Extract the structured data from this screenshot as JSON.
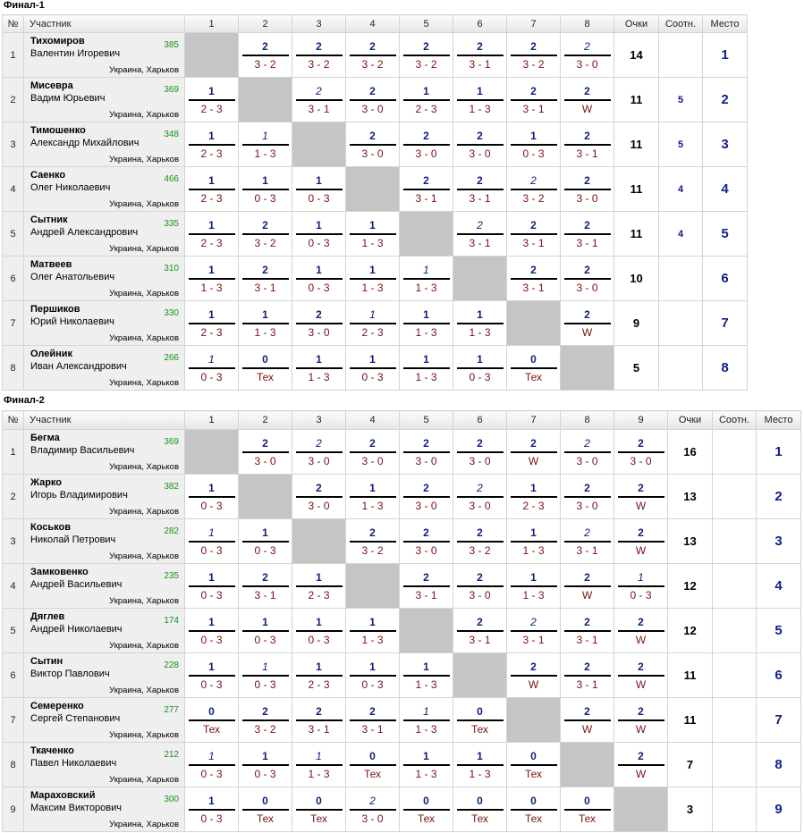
{
  "sections": [
    {
      "title": "Финал-1",
      "headers": {
        "no": "№",
        "participant": "Участник",
        "cols": [
          "1",
          "2",
          "3",
          "4",
          "5",
          "6",
          "7",
          "8"
        ],
        "points": "Очки",
        "ratio": "Соотн.",
        "place": "Место"
      },
      "rows": [
        {
          "no": "1",
          "name": "Тихомиров",
          "first": "Валентин Игоревич",
          "rating": "385",
          "city": "Украина, Харьков",
          "cells": [
            null,
            [
              "2",
              "3 - 2",
              0
            ],
            [
              "2",
              "3 - 2",
              0
            ],
            [
              "2",
              "3 - 2",
              0
            ],
            [
              "2",
              "3 - 2",
              0
            ],
            [
              "2",
              "3 - 1",
              0
            ],
            [
              "2",
              "3 - 2",
              0
            ],
            [
              "2",
              "3 - 0",
              1
            ]
          ],
          "points": "14",
          "ratio": "",
          "place": "1"
        },
        {
          "no": "2",
          "name": "Мисевра",
          "first": "Вадим Юрьевич",
          "rating": "369",
          "city": "Украина, Харьков",
          "cells": [
            [
              "1",
              "2 - 3",
              0
            ],
            null,
            [
              "2",
              "3 - 1",
              1
            ],
            [
              "2",
              "3 - 0",
              0
            ],
            [
              "1",
              "2 - 3",
              0
            ],
            [
              "1",
              "1 - 3",
              0
            ],
            [
              "2",
              "3 - 1",
              0
            ],
            [
              "2",
              "W",
              0
            ]
          ],
          "points": "11",
          "ratio": "5",
          "place": "2"
        },
        {
          "no": "3",
          "name": "Тимошенко",
          "first": "Александр Михайлович",
          "rating": "348",
          "city": "Украина, Харьков",
          "cells": [
            [
              "1",
              "2 - 3",
              0
            ],
            [
              "1",
              "1 - 3",
              1
            ],
            null,
            [
              "2",
              "3 - 0",
              0
            ],
            [
              "2",
              "3 - 0",
              0
            ],
            [
              "2",
              "3 - 0",
              0
            ],
            [
              "1",
              "0 - 3",
              0
            ],
            [
              "2",
              "3 - 1",
              0
            ]
          ],
          "points": "11",
          "ratio": "5",
          "place": "3"
        },
        {
          "no": "4",
          "name": "Саенко",
          "first": "Олег Николаевич",
          "rating": "466",
          "city": "Украина, Харьков",
          "cells": [
            [
              "1",
              "2 - 3",
              0
            ],
            [
              "1",
              "0 - 3",
              0
            ],
            [
              "1",
              "0 - 3",
              0
            ],
            null,
            [
              "2",
              "3 - 1",
              0
            ],
            [
              "2",
              "3 - 1",
              0
            ],
            [
              "2",
              "3 - 2",
              1
            ],
            [
              "2",
              "3 - 0",
              0
            ]
          ],
          "points": "11",
          "ratio": "4",
          "place": "4"
        },
        {
          "no": "5",
          "name": "Сытник",
          "first": "Андрей Александрович",
          "rating": "335",
          "city": "Украина, Харьков",
          "cells": [
            [
              "1",
              "2 - 3",
              0
            ],
            [
              "2",
              "3 - 2",
              0
            ],
            [
              "1",
              "0 - 3",
              0
            ],
            [
              "1",
              "1 - 3",
              0
            ],
            null,
            [
              "2",
              "3 - 1",
              1
            ],
            [
              "2",
              "3 - 1",
              0
            ],
            [
              "2",
              "3 - 1",
              0
            ]
          ],
          "points": "11",
          "ratio": "4",
          "place": "5"
        },
        {
          "no": "6",
          "name": "Матвеев",
          "first": "Олег Анатольевич",
          "rating": "310",
          "city": "Украина, Харьков",
          "cells": [
            [
              "1",
              "1 - 3",
              0
            ],
            [
              "2",
              "3 - 1",
              0
            ],
            [
              "1",
              "0 - 3",
              0
            ],
            [
              "1",
              "1 - 3",
              0
            ],
            [
              "1",
              "1 - 3",
              1
            ],
            null,
            [
              "2",
              "3 - 1",
              0
            ],
            [
              "2",
              "3 - 0",
              0
            ]
          ],
          "points": "10",
          "ratio": "",
          "place": "6"
        },
        {
          "no": "7",
          "name": "Першиков",
          "first": "Юрий Николаевич",
          "rating": "330",
          "city": "Украина, Харьков",
          "cells": [
            [
              "1",
              "2 - 3",
              0
            ],
            [
              "1",
              "1 - 3",
              0
            ],
            [
              "2",
              "3 - 0",
              0
            ],
            [
              "1",
              "2 - 3",
              1
            ],
            [
              "1",
              "1 - 3",
              0
            ],
            [
              "1",
              "1 - 3",
              0
            ],
            null,
            [
              "2",
              "W",
              0
            ]
          ],
          "points": "9",
          "ratio": "",
          "place": "7"
        },
        {
          "no": "8",
          "name": "Олейник",
          "first": "Иван Александрович",
          "rating": "266",
          "city": "Украина, Харьков",
          "cells": [
            [
              "1",
              "0 - 3",
              1
            ],
            [
              "0",
              "Тех",
              0
            ],
            [
              "1",
              "1 - 3",
              0
            ],
            [
              "1",
              "0 - 3",
              0
            ],
            [
              "1",
              "1 - 3",
              0
            ],
            [
              "1",
              "0 - 3",
              0
            ],
            [
              "0",
              "Тех",
              0
            ],
            null
          ],
          "points": "5",
          "ratio": "",
          "place": "8"
        }
      ]
    },
    {
      "title": "Финал-2",
      "headers": {
        "no": "№",
        "participant": "Участник",
        "cols": [
          "1",
          "2",
          "3",
          "4",
          "5",
          "6",
          "7",
          "8",
          "9"
        ],
        "points": "Очки",
        "ratio": "Соотн.",
        "place": "Место"
      },
      "rows": [
        {
          "no": "1",
          "name": "Бегма",
          "first": "Владимир Васильевич",
          "rating": "369",
          "city": "Украина, Харьков",
          "cells": [
            null,
            [
              "2",
              "3 - 0",
              0
            ],
            [
              "2",
              "3 - 0",
              1
            ],
            [
              "2",
              "3 - 0",
              0
            ],
            [
              "2",
              "3 - 0",
              0
            ],
            [
              "2",
              "3 - 0",
              0
            ],
            [
              "2",
              "W",
              0
            ],
            [
              "2",
              "3 - 0",
              1
            ],
            [
              "2",
              "3 - 0",
              0
            ]
          ],
          "points": "16",
          "ratio": "",
          "place": "1"
        },
        {
          "no": "2",
          "name": "Жарко",
          "first": "Игорь Владимирович",
          "rating": "382",
          "city": "Украина, Харьков",
          "cells": [
            [
              "1",
              "0 - 3",
              0
            ],
            null,
            [
              "2",
              "3 - 0",
              0
            ],
            [
              "1",
              "1 - 3",
              0
            ],
            [
              "2",
              "3 - 0",
              0
            ],
            [
              "2",
              "3 - 0",
              1
            ],
            [
              "1",
              "2 - 3",
              0
            ],
            [
              "2",
              "3 - 0",
              0
            ],
            [
              "2",
              "W",
              0
            ]
          ],
          "points": "13",
          "ratio": "",
          "place": "2"
        },
        {
          "no": "3",
          "name": "Коськов",
          "first": "Николай Петрович",
          "rating": "282",
          "city": "Украина, Харьков",
          "cells": [
            [
              "1",
              "0 - 3",
              1
            ],
            [
              "1",
              "0 - 3",
              0
            ],
            null,
            [
              "2",
              "3 - 2",
              0
            ],
            [
              "2",
              "3 - 0",
              0
            ],
            [
              "2",
              "3 - 2",
              0
            ],
            [
              "1",
              "1 - 3",
              0
            ],
            [
              "2",
              "3 - 1",
              1
            ],
            [
              "2",
              "W",
              0
            ]
          ],
          "points": "13",
          "ratio": "",
          "place": "3"
        },
        {
          "no": "4",
          "name": "Замковенко",
          "first": "Андрей Васильевич",
          "rating": "235",
          "city": "Украина, Харьков",
          "cells": [
            [
              "1",
              "0 - 3",
              0
            ],
            [
              "2",
              "3 - 1",
              0
            ],
            [
              "1",
              "2 - 3",
              0
            ],
            null,
            [
              "2",
              "3 - 1",
              0
            ],
            [
              "2",
              "3 - 0",
              0
            ],
            [
              "1",
              "1 - 3",
              0
            ],
            [
              "2",
              "W",
              0
            ],
            [
              "1",
              "0 - 3",
              1
            ]
          ],
          "points": "12",
          "ratio": "",
          "place": "4"
        },
        {
          "no": "5",
          "name": "Дяглев",
          "first": "Андрей Николаевич",
          "rating": "174",
          "city": "Украина, Харьков",
          "cells": [
            [
              "1",
              "0 - 3",
              0
            ],
            [
              "1",
              "0 - 3",
              0
            ],
            [
              "1",
              "0 - 3",
              0
            ],
            [
              "1",
              "1 - 3",
              0
            ],
            null,
            [
              "2",
              "3 - 1",
              0
            ],
            [
              "2",
              "3 - 1",
              1
            ],
            [
              "2",
              "3 - 1",
              0
            ],
            [
              "2",
              "W",
              0
            ]
          ],
          "points": "12",
          "ratio": "",
          "place": "5"
        },
        {
          "no": "6",
          "name": "Сытин",
          "first": "Виктор Павлович",
          "rating": "228",
          "city": "Украина, Харьков",
          "cells": [
            [
              "1",
              "0 - 3",
              0
            ],
            [
              "1",
              "0 - 3",
              1
            ],
            [
              "1",
              "2 - 3",
              0
            ],
            [
              "1",
              "0 - 3",
              0
            ],
            [
              "1",
              "1 - 3",
              0
            ],
            null,
            [
              "2",
              "W",
              0
            ],
            [
              "2",
              "3 - 1",
              0
            ],
            [
              "2",
              "W",
              0
            ]
          ],
          "points": "11",
          "ratio": "",
          "place": "6"
        },
        {
          "no": "7",
          "name": "Семеренко",
          "first": "Сергей Степанович",
          "rating": "277",
          "city": "Украина, Харьков",
          "cells": [
            [
              "0",
              "Тех",
              0
            ],
            [
              "2",
              "3 - 2",
              0
            ],
            [
              "2",
              "3 - 1",
              0
            ],
            [
              "2",
              "3 - 1",
              0
            ],
            [
              "1",
              "1 - 3",
              1
            ],
            [
              "0",
              "Тех",
              0
            ],
            null,
            [
              "2",
              "W",
              0
            ],
            [
              "2",
              "W",
              0
            ]
          ],
          "points": "11",
          "ratio": "",
          "place": "7"
        },
        {
          "no": "8",
          "name": "Ткаченко",
          "first": "Павел Николаевич",
          "rating": "212",
          "city": "Украина, Харьков",
          "cells": [
            [
              "1",
              "0 - 3",
              1
            ],
            [
              "1",
              "0 - 3",
              0
            ],
            [
              "1",
              "1 - 3",
              1
            ],
            [
              "0",
              "Тех",
              0
            ],
            [
              "1",
              "1 - 3",
              0
            ],
            [
              "1",
              "1 - 3",
              0
            ],
            [
              "0",
              "Тех",
              0
            ],
            null,
            [
              "2",
              "W",
              0
            ]
          ],
          "points": "7",
          "ratio": "",
          "place": "8"
        },
        {
          "no": "9",
          "name": "Мараховский",
          "first": "Максим Викторович",
          "rating": "300",
          "city": "Украина, Харьков",
          "cells": [
            [
              "1",
              "0 - 3",
              0
            ],
            [
              "0",
              "Тех",
              0
            ],
            [
              "0",
              "Тех",
              0
            ],
            [
              "2",
              "3 - 0",
              1
            ],
            [
              "0",
              "Тех",
              0
            ],
            [
              "0",
              "Тех",
              0
            ],
            [
              "0",
              "Тех",
              0
            ],
            [
              "0",
              "Тех",
              0
            ],
            null
          ],
          "points": "3",
          "ratio": "",
          "place": "9"
        }
      ]
    }
  ]
}
